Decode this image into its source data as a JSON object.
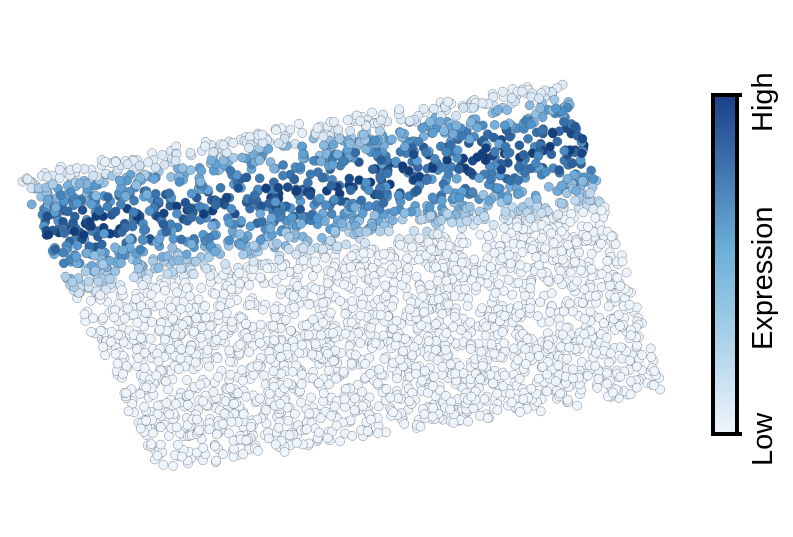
{
  "figure": {
    "description_type": "spatial transcriptomics expression map",
    "point_style": {
      "edge_color": "#4a5560",
      "low_fill": "#eef4fb",
      "high_fill": "#0f3d7e"
    }
  },
  "colorbar": {
    "title": "Expression",
    "low_label": "Low",
    "high_label": "High",
    "gradient_low": "#eef5fc",
    "gradient_mid": "#6aaed6",
    "gradient_high": "#1b3f8a",
    "border_color": "#000000"
  }
}
